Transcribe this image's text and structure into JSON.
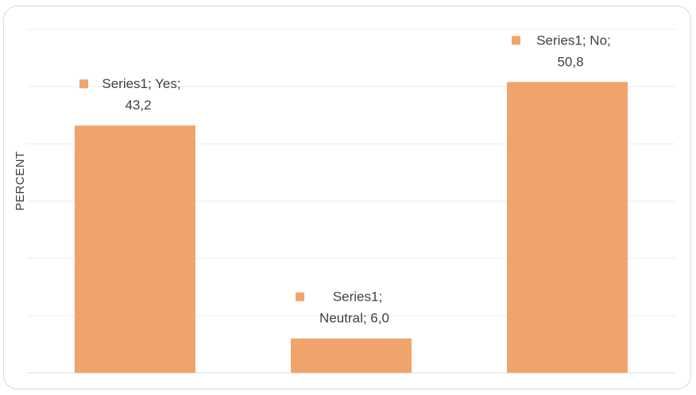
{
  "chart_data": {
    "type": "bar",
    "categories": [
      "Yes",
      "Neutral",
      "No"
    ],
    "series": [
      {
        "values": [
          43.2,
          6.0,
          50.8
        ]
      }
    ],
    "title": "",
    "xlabel": "",
    "ylabel": "PERCENT",
    "ylim": [
      0,
      60
    ],
    "grid": true,
    "gridlines": [
      0,
      10,
      20,
      30,
      40,
      50,
      60
    ],
    "bar_color": "#f0a46c",
    "data_labels": [
      {
        "line1": "Series1; Yes;",
        "line2": "43,2"
      },
      {
        "line1": "Series1;",
        "line2": "Neutral; 6,0"
      },
      {
        "line1": "Series1; No;",
        "line2": "50,8"
      }
    ]
  }
}
